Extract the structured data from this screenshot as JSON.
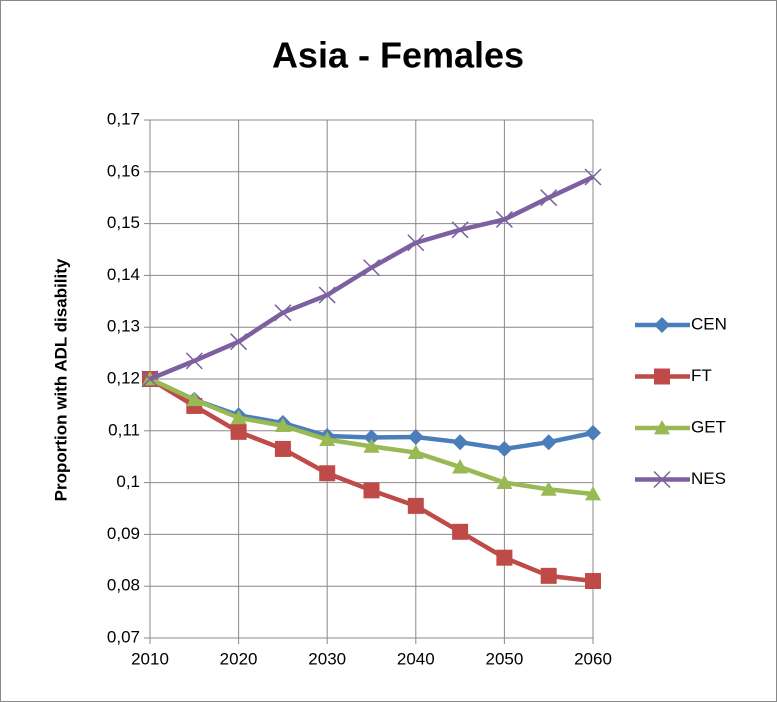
{
  "chart_data": {
    "type": "line",
    "title": "Asia - Females",
    "y_label": "Proportion with ADL disability",
    "x": [
      2010,
      2015,
      2020,
      2025,
      2030,
      2035,
      2040,
      2045,
      2050,
      2055,
      2060
    ],
    "xlim": [
      2010,
      2060
    ],
    "xticks": [
      2010,
      2020,
      2030,
      2040,
      2050,
      2060
    ],
    "ylim": [
      0.07,
      0.17
    ],
    "yticks": [
      {
        "value": 0.07,
        "label": "0,07"
      },
      {
        "value": 0.08,
        "label": "0,08"
      },
      {
        "value": 0.09,
        "label": "0,09"
      },
      {
        "value": 0.1,
        "label": "0,1"
      },
      {
        "value": 0.11,
        "label": "0,11"
      },
      {
        "value": 0.12,
        "label": "0,12"
      },
      {
        "value": 0.13,
        "label": "0,13"
      },
      {
        "value": 0.14,
        "label": "0,14"
      },
      {
        "value": 0.15,
        "label": "0,15"
      },
      {
        "value": 0.16,
        "label": "0,16"
      },
      {
        "value": 0.17,
        "label": "0,17"
      }
    ],
    "grid": true,
    "legend": "right",
    "series": [
      {
        "name": "CEN",
        "color": "#4a7ebb",
        "marker": "diamond",
        "values": [
          0.12,
          0.116,
          0.113,
          0.1115,
          0.109,
          0.1087,
          0.1088,
          0.1078,
          0.1065,
          0.1078,
          0.1096
        ]
      },
      {
        "name": "FT",
        "color": "#be4b48",
        "marker": "square",
        "values": [
          0.12,
          0.1148,
          0.1098,
          0.1065,
          0.1018,
          0.0985,
          0.0955,
          0.0905,
          0.0855,
          0.082,
          0.081
        ]
      },
      {
        "name": "GET",
        "color": "#98b954",
        "marker": "triangle",
        "values": [
          0.12,
          0.116,
          0.1125,
          0.111,
          0.1083,
          0.107,
          0.1058,
          0.103,
          0.1,
          0.0987,
          0.0978
        ]
      },
      {
        "name": "NES",
        "color": "#7d60a0",
        "marker": "x",
        "values": [
          0.12,
          0.1235,
          0.1272,
          0.1328,
          0.1362,
          0.1415,
          0.1463,
          0.1488,
          0.1508,
          0.155,
          0.159
        ]
      }
    ]
  }
}
